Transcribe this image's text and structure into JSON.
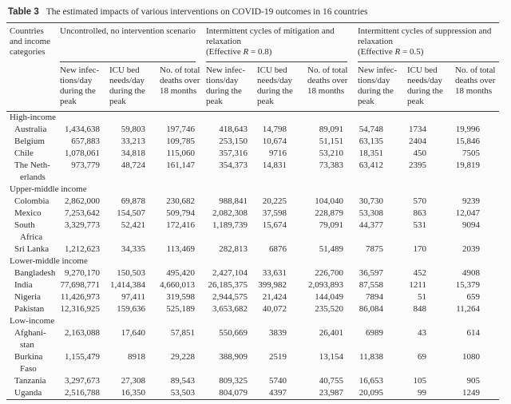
{
  "caption": {
    "label": "Table 3",
    "text": "The estimated impacts of various interventions on COVID-19 outcomes in 16 countries"
  },
  "header": {
    "stub": "Countries\nand income\ncategories",
    "groups": [
      {
        "title": "Uncontrolled, no intervention scenario",
        "r_prefix": "",
        "r": "",
        "r_suffix": "",
        "cols": [
          "New infec-\ntions/day\nduring the\npeak",
          "ICU bed\nneeds/day\nduring the\npeak",
          "No. of total\ndeaths over\n18 months"
        ]
      },
      {
        "title": "Intermittent cycles of mitigation and\nrelaxation",
        "r_prefix": "(Effective ",
        "r": "R",
        "r_suffix": " = 0.8)",
        "cols": [
          "New infec-\ntions/day\nduring the\npeak",
          "ICU bed\nneeds/day\nduring the\npeak",
          "No. of total\ndeaths over\n18 months"
        ]
      },
      {
        "title": "Intermittent cycles of suppression and\nrelaxation",
        "r_prefix": "(Effective ",
        "r": "R",
        "r_suffix": " = 0.5)",
        "cols": [
          "New infec-\ntions/day\nduring the\npeak",
          "ICU bed\nneeds/day\nduring the\npeak",
          "No. of total\ndeaths over\n18 months"
        ]
      }
    ]
  },
  "table": {
    "rows": [
      {
        "type": "category",
        "label": "High-income"
      },
      {
        "type": "country",
        "name": "Australia",
        "values": [
          "1,434,638",
          "59,803",
          "197,746",
          "418,643",
          "14,798",
          "89,091",
          "54,748",
          "1734",
          "19,996"
        ]
      },
      {
        "type": "country",
        "name": "Belgium",
        "values": [
          "657,883",
          "33,213",
          "109,785",
          "253,150",
          "10,674",
          "51,151",
          "63,135",
          "2404",
          "15,846"
        ]
      },
      {
        "type": "country",
        "name": "Chile",
        "values": [
          "1,078,061",
          "34,818",
          "115,060",
          "357,316",
          "9716",
          "53,210",
          "18,351",
          "450",
          "7505"
        ]
      },
      {
        "type": "country",
        "name": "The Neth-\nerlands",
        "values": [
          "973,779",
          "48,724",
          "161,147",
          "354,373",
          "14,831",
          "73,383",
          "63,412",
          "2395",
          "19,819"
        ]
      },
      {
        "type": "category",
        "label": "Upper-middle income"
      },
      {
        "type": "country",
        "name": "Colombia",
        "values": [
          "2,862,000",
          "69,878",
          "230,682",
          "988,841",
          "20,225",
          "104,040",
          "30,730",
          "570",
          "9239"
        ]
      },
      {
        "type": "country",
        "name": "Mexico",
        "values": [
          "7,253,642",
          "154,507",
          "509,794",
          "2,082,308",
          "37,598",
          "228,879",
          "53,308",
          "863",
          "12,047"
        ]
      },
      {
        "type": "country",
        "name": "South\nAfrica",
        "values": [
          "3,329,773",
          "52,421",
          "172,416",
          "1,189,739",
          "15,674",
          "79,091",
          "44,377",
          "531",
          "9094"
        ]
      },
      {
        "type": "country",
        "name": "Sri Lanka",
        "values": [
          "1,212,623",
          "34,335",
          "113,469",
          "282,813",
          "6876",
          "51,489",
          "7875",
          "170",
          "2039"
        ]
      },
      {
        "type": "category",
        "label": "Lower-middle income"
      },
      {
        "type": "country",
        "name": "Bangladesh",
        "values": [
          "9,270,170",
          "150,503",
          "495,420",
          "2,427,104",
          "33,631",
          "226,700",
          "36,597",
          "452",
          "4908"
        ]
      },
      {
        "type": "country",
        "name": "India",
        "values": [
          "77,698,771",
          "1,414,384",
          "4,660,013",
          "26,185,375",
          "399,982",
          "2,093,893",
          "87,558",
          "1211",
          "15,379"
        ]
      },
      {
        "type": "country",
        "name": "Nigeria",
        "values": [
          "11,426,973",
          "97,411",
          "319,598",
          "2,944,575",
          "21,424",
          "144,049",
          "7894",
          "51",
          "659"
        ]
      },
      {
        "type": "country",
        "name": "Pakistan",
        "values": [
          "12,316,925",
          "159,636",
          "525,189",
          "3,653,682",
          "40,072",
          "235,520",
          "86,084",
          "848",
          "11,264"
        ]
      },
      {
        "type": "category",
        "label": "Low-income"
      },
      {
        "type": "country",
        "name": "Afghani-\nstan",
        "values": [
          "2,163,088",
          "17,640",
          "57,851",
          "550,669",
          "3839",
          "26,401",
          "6989",
          "43",
          "614"
        ]
      },
      {
        "type": "country",
        "name": "Burkina\nFaso",
        "values": [
          "1,155,479",
          "8918",
          "29,228",
          "388,909",
          "2519",
          "13,154",
          "11,838",
          "69",
          "1080"
        ]
      },
      {
        "type": "country",
        "name": "Tanzania",
        "values": [
          "3,297,673",
          "27,308",
          "89,543",
          "809,325",
          "5740",
          "40,755",
          "16,653",
          "105",
          "905"
        ]
      },
      {
        "type": "country",
        "name": "Uganda",
        "values": [
          "2,516,788",
          "16,350",
          "53,503",
          "804,079",
          "4397",
          "23,987",
          "20,095",
          "99",
          "1249"
        ]
      }
    ]
  },
  "colors": {
    "background": "#fbfbfb",
    "text": "#2f2f2f",
    "rule": "#3f3f3f"
  }
}
